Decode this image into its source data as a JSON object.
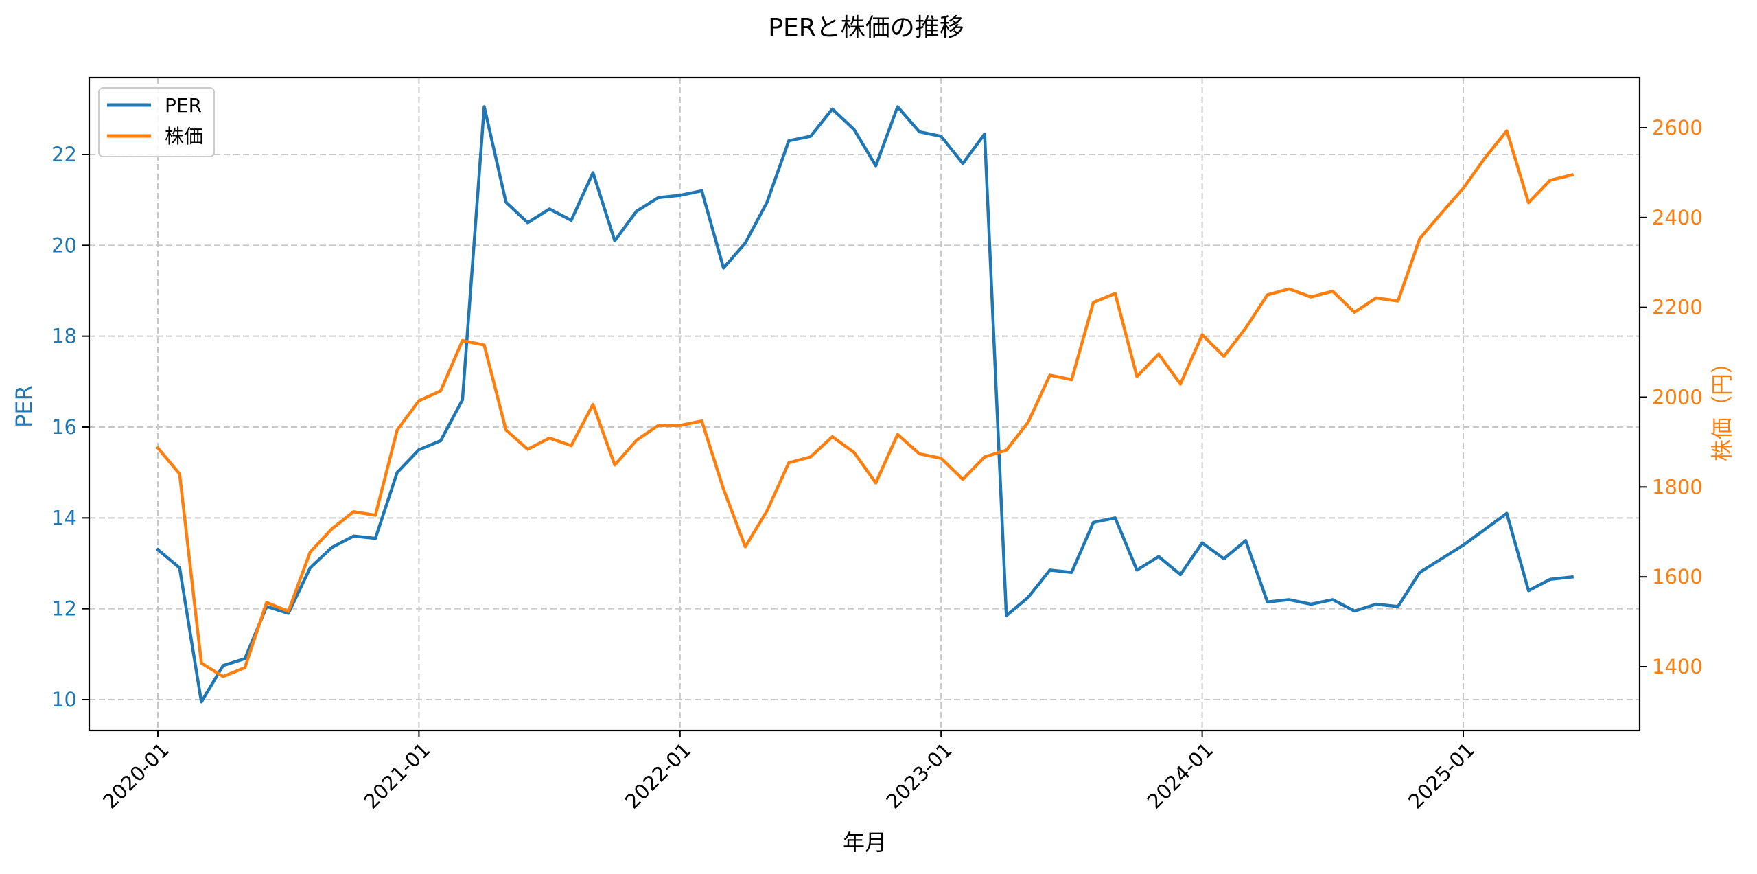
{
  "chart_data": {
    "type": "line",
    "title": "PERと株価の推移",
    "xlabel": "年月",
    "ylabel_left": "PER",
    "ylabel_right": "株価（円）",
    "x_ticks": [
      "2020-01",
      "2021-01",
      "2022-01",
      "2023-01",
      "2024-01",
      "2025-01"
    ],
    "y_left_ticks": [
      10,
      12,
      14,
      16,
      18,
      20,
      22
    ],
    "y_right_ticks": [
      1400,
      1600,
      1800,
      2000,
      2200,
      2400,
      2600
    ],
    "y_left_range": [
      9.3,
      23.6
    ],
    "y_right_range": [
      1250,
      2710
    ],
    "grid": true,
    "legend_position": "upper left",
    "x": [
      "2020-01",
      "2020-02",
      "2020-03",
      "2020-04",
      "2020-05",
      "2020-06",
      "2020-07",
      "2020-08",
      "2020-09",
      "2020-10",
      "2020-11",
      "2020-12",
      "2021-01",
      "2021-02",
      "2021-03",
      "2021-04",
      "2021-05",
      "2021-06",
      "2021-07",
      "2021-08",
      "2021-09",
      "2021-10",
      "2021-11",
      "2021-12",
      "2022-01",
      "2022-02",
      "2022-03",
      "2022-04",
      "2022-05",
      "2022-06",
      "2022-07",
      "2022-08",
      "2022-09",
      "2022-10",
      "2022-11",
      "2022-12",
      "2023-01",
      "2023-02",
      "2023-03",
      "2023-04",
      "2023-05",
      "2023-06",
      "2023-07",
      "2023-08",
      "2023-09",
      "2023-10",
      "2023-11",
      "2023-12",
      "2024-01",
      "2024-02",
      "2024-03",
      "2024-04",
      "2024-05",
      "2024-06",
      "2024-07",
      "2024-08",
      "2024-09",
      "2024-10",
      "2024-11",
      "2024-12",
      "2025-01",
      "2025-02",
      "2025-03",
      "2025-04",
      "2025-05",
      "2025-06"
    ],
    "series": [
      {
        "name": "PER",
        "axis": "left",
        "color": "#1f77b4",
        "values": [
          13.3,
          12.9,
          9.95,
          10.75,
          10.9,
          12.05,
          11.9,
          12.9,
          13.35,
          13.6,
          13.55,
          15.0,
          15.5,
          15.7,
          16.6,
          23.05,
          20.95,
          20.5,
          20.8,
          20.55,
          21.6,
          20.1,
          20.75,
          21.05,
          21.1,
          21.2,
          19.5,
          20.05,
          20.95,
          22.3,
          22.4,
          23.0,
          22.55,
          21.75,
          23.05,
          22.5,
          22.4,
          21.8,
          22.45,
          11.85,
          12.25,
          12.85,
          12.8,
          13.9,
          14.0,
          12.85,
          13.15,
          12.75,
          13.45,
          13.1,
          13.5,
          12.15,
          12.2,
          12.1,
          12.2,
          11.95,
          12.1,
          12.05,
          12.8,
          13.1,
          13.4,
          13.75,
          14.1,
          12.4,
          12.65,
          12.7
        ]
      },
      {
        "name": "株価",
        "axis": "right",
        "color": "#ff7f0e",
        "values": [
          1887,
          1829,
          1408,
          1378,
          1398,
          1543,
          1523,
          1655,
          1707,
          1745,
          1737,
          1927,
          1992,
          2014,
          2126,
          2116,
          1927,
          1884,
          1909,
          1892,
          1984,
          1849,
          1904,
          1937,
          1937,
          1947,
          1795,
          1667,
          1747,
          1854,
          1867,
          1912,
          1877,
          1809,
          1917,
          1874,
          1864,
          1817,
          1867,
          1882,
          1944,
          2049,
          2039,
          2211,
          2231,
          2046,
          2096,
          2029,
          2139,
          2091,
          2154,
          2228,
          2241,
          2223,
          2236,
          2189,
          2221,
          2214,
          2353,
          2410,
          2465,
          2533,
          2593,
          2433,
          2483,
          2495
        ]
      }
    ]
  },
  "legend": {
    "items": [
      {
        "label": "PER",
        "color": "#1f77b4"
      },
      {
        "label": "株価",
        "color": "#ff7f0e"
      }
    ]
  }
}
